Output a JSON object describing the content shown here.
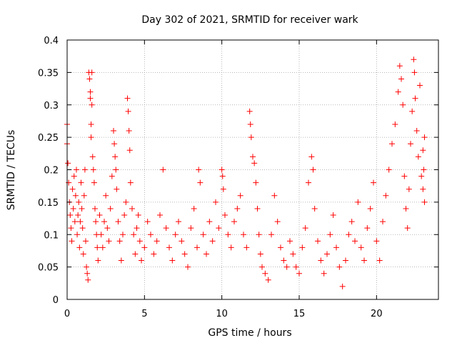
{
  "chart_data": {
    "type": "scatter",
    "title": "Day 302 of 2021, SRMTID for receiver wark",
    "xlabel": "GPS time / hours",
    "ylabel": "SRMTID / TECUs",
    "xlim": [
      0,
      24
    ],
    "ylim": [
      0,
      0.4
    ],
    "xticks": [
      0,
      5,
      10,
      15,
      20
    ],
    "xtick_labels": [
      "0",
      "5",
      "10",
      "15",
      "20"
    ],
    "yticks": [
      0,
      0.05,
      0.1,
      0.15,
      0.2,
      0.25,
      0.3,
      0.35,
      0.4
    ],
    "ytick_labels": [
      "0",
      "0.05",
      "0.1",
      "0.15",
      "0.2",
      "0.25",
      "0.3",
      "0.35",
      "0.4"
    ],
    "grid": true,
    "marker": "+",
    "color": "#ff0000",
    "series": [
      {
        "name": "SRMTID",
        "points": [
          [
            0.0,
            0.27
          ],
          [
            0.0,
            0.24
          ],
          [
            0.05,
            0.21
          ],
          [
            0.1,
            0.18
          ],
          [
            0.15,
            0.15
          ],
          [
            0.2,
            0.13
          ],
          [
            0.25,
            0.11
          ],
          [
            0.3,
            0.09
          ],
          [
            0.35,
            0.17
          ],
          [
            0.4,
            0.14
          ],
          [
            0.45,
            0.19
          ],
          [
            0.5,
            0.12
          ],
          [
            0.55,
            0.16
          ],
          [
            0.6,
            0.2
          ],
          [
            0.65,
            0.1
          ],
          [
            0.7,
            0.13
          ],
          [
            0.75,
            0.15
          ],
          [
            0.8,
            0.08
          ],
          [
            0.85,
            0.12
          ],
          [
            0.9,
            0.18
          ],
          [
            0.95,
            0.14
          ],
          [
            1.0,
            0.11
          ],
          [
            1.05,
            0.07
          ],
          [
            1.1,
            0.16
          ],
          [
            1.15,
            0.2
          ],
          [
            1.2,
            0.09
          ],
          [
            1.25,
            0.05
          ],
          [
            1.3,
            0.04
          ],
          [
            1.35,
            0.03
          ],
          [
            1.4,
            0.35
          ],
          [
            1.45,
            0.34
          ],
          [
            1.5,
            0.32
          ],
          [
            1.5,
            0.31
          ],
          [
            1.55,
            0.27
          ],
          [
            1.55,
            0.25
          ],
          [
            1.6,
            0.35
          ],
          [
            1.6,
            0.3
          ],
          [
            1.65,
            0.22
          ],
          [
            1.7,
            0.2
          ],
          [
            1.75,
            0.18
          ],
          [
            1.8,
            0.14
          ],
          [
            1.85,
            0.12
          ],
          [
            1.9,
            0.1
          ],
          [
            1.95,
            0.08
          ],
          [
            2.0,
            0.06
          ],
          [
            2.1,
            0.13
          ],
          [
            2.2,
            0.1
          ],
          [
            2.3,
            0.08
          ],
          [
            2.4,
            0.12
          ],
          [
            2.5,
            0.16
          ],
          [
            2.6,
            0.11
          ],
          [
            2.7,
            0.09
          ],
          [
            2.8,
            0.14
          ],
          [
            2.9,
            0.19
          ],
          [
            3.0,
            0.26
          ],
          [
            3.05,
            0.24
          ],
          [
            3.1,
            0.22
          ],
          [
            3.15,
            0.2
          ],
          [
            3.2,
            0.17
          ],
          [
            3.3,
            0.12
          ],
          [
            3.4,
            0.09
          ],
          [
            3.5,
            0.06
          ],
          [
            3.6,
            0.1
          ],
          [
            3.7,
            0.13
          ],
          [
            3.8,
            0.15
          ],
          [
            3.9,
            0.31
          ],
          [
            3.95,
            0.29
          ],
          [
            4.0,
            0.26
          ],
          [
            4.05,
            0.23
          ],
          [
            4.1,
            0.18
          ],
          [
            4.2,
            0.14
          ],
          [
            4.3,
            0.1
          ],
          [
            4.4,
            0.07
          ],
          [
            4.5,
            0.11
          ],
          [
            4.6,
            0.13
          ],
          [
            4.7,
            0.09
          ],
          [
            4.8,
            0.06
          ],
          [
            5.0,
            0.08
          ],
          [
            5.2,
            0.12
          ],
          [
            5.4,
            0.1
          ],
          [
            5.6,
            0.07
          ],
          [
            5.8,
            0.09
          ],
          [
            6.0,
            0.13
          ],
          [
            6.2,
            0.2
          ],
          [
            6.4,
            0.11
          ],
          [
            6.6,
            0.08
          ],
          [
            6.8,
            0.06
          ],
          [
            7.0,
            0.1
          ],
          [
            7.2,
            0.12
          ],
          [
            7.4,
            0.09
          ],
          [
            7.6,
            0.07
          ],
          [
            7.8,
            0.05
          ],
          [
            8.0,
            0.11
          ],
          [
            8.2,
            0.14
          ],
          [
            8.4,
            0.08
          ],
          [
            8.5,
            0.2
          ],
          [
            8.6,
            0.18
          ],
          [
            8.8,
            0.1
          ],
          [
            9.0,
            0.07
          ],
          [
            9.2,
            0.12
          ],
          [
            9.4,
            0.09
          ],
          [
            9.6,
            0.15
          ],
          [
            9.8,
            0.11
          ],
          [
            10.0,
            0.2
          ],
          [
            10.05,
            0.19
          ],
          [
            10.1,
            0.17
          ],
          [
            10.2,
            0.13
          ],
          [
            10.4,
            0.1
          ],
          [
            10.6,
            0.08
          ],
          [
            10.8,
            0.12
          ],
          [
            11.0,
            0.14
          ],
          [
            11.2,
            0.16
          ],
          [
            11.4,
            0.1
          ],
          [
            11.6,
            0.08
          ],
          [
            11.8,
            0.29
          ],
          [
            11.85,
            0.27
          ],
          [
            11.9,
            0.25
          ],
          [
            12.0,
            0.22
          ],
          [
            12.1,
            0.21
          ],
          [
            12.2,
            0.18
          ],
          [
            12.3,
            0.14
          ],
          [
            12.4,
            0.1
          ],
          [
            12.5,
            0.07
          ],
          [
            12.6,
            0.05
          ],
          [
            12.8,
            0.04
          ],
          [
            13.0,
            0.03
          ],
          [
            13.2,
            0.1
          ],
          [
            13.4,
            0.16
          ],
          [
            13.6,
            0.12
          ],
          [
            13.8,
            0.08
          ],
          [
            14.0,
            0.06
          ],
          [
            14.2,
            0.05
          ],
          [
            14.4,
            0.09
          ],
          [
            14.6,
            0.07
          ],
          [
            14.8,
            0.05
          ],
          [
            15.0,
            0.04
          ],
          [
            15.2,
            0.08
          ],
          [
            15.4,
            0.11
          ],
          [
            15.6,
            0.18
          ],
          [
            15.8,
            0.22
          ],
          [
            15.9,
            0.2
          ],
          [
            16.0,
            0.14
          ],
          [
            16.2,
            0.09
          ],
          [
            16.4,
            0.06
          ],
          [
            16.6,
            0.04
          ],
          [
            16.8,
            0.07
          ],
          [
            17.0,
            0.1
          ],
          [
            17.2,
            0.13
          ],
          [
            17.4,
            0.08
          ],
          [
            17.6,
            0.05
          ],
          [
            17.8,
            0.02
          ],
          [
            18.0,
            0.06
          ],
          [
            18.2,
            0.1
          ],
          [
            18.4,
            0.12
          ],
          [
            18.6,
            0.09
          ],
          [
            18.8,
            0.15
          ],
          [
            19.0,
            0.08
          ],
          [
            19.2,
            0.06
          ],
          [
            19.4,
            0.11
          ],
          [
            19.6,
            0.14
          ],
          [
            19.8,
            0.18
          ],
          [
            20.0,
            0.09
          ],
          [
            20.2,
            0.06
          ],
          [
            20.4,
            0.12
          ],
          [
            20.6,
            0.16
          ],
          [
            20.8,
            0.2
          ],
          [
            21.0,
            0.24
          ],
          [
            21.2,
            0.27
          ],
          [
            21.4,
            0.32
          ],
          [
            21.5,
            0.36
          ],
          [
            21.6,
            0.34
          ],
          [
            21.7,
            0.3
          ],
          [
            21.8,
            0.19
          ],
          [
            21.9,
            0.14
          ],
          [
            22.0,
            0.11
          ],
          [
            22.1,
            0.17
          ],
          [
            22.2,
            0.24
          ],
          [
            22.3,
            0.29
          ],
          [
            22.4,
            0.37
          ],
          [
            22.45,
            0.35
          ],
          [
            22.5,
            0.31
          ],
          [
            22.6,
            0.26
          ],
          [
            22.7,
            0.22
          ],
          [
            22.8,
            0.33
          ],
          [
            22.9,
            0.19
          ],
          [
            23.0,
            0.23
          ],
          [
            23.0,
            0.17
          ],
          [
            23.05,
            0.2
          ],
          [
            23.1,
            0.15
          ],
          [
            23.1,
            0.25
          ]
        ]
      }
    ]
  }
}
